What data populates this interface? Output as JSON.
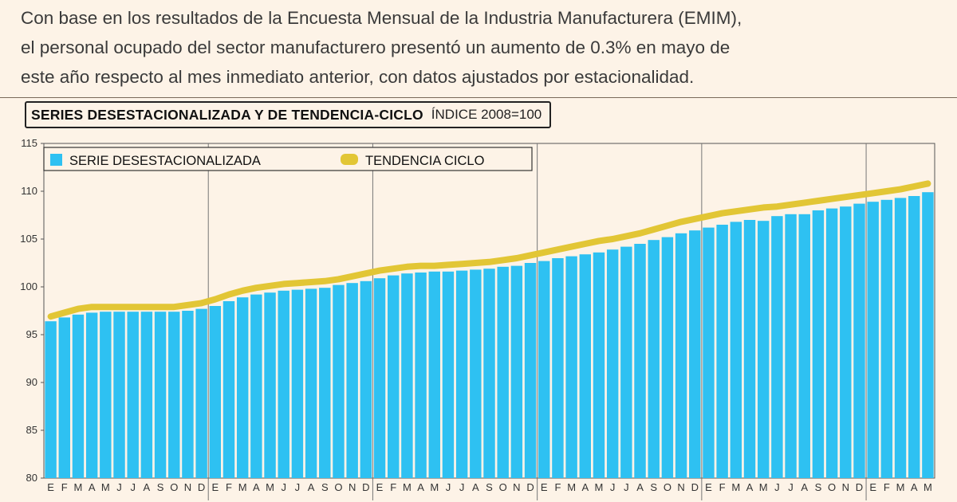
{
  "intro": {
    "line1": "Con base en los resultados de la Encuesta Mensual de la Industria Manufacturera (EMIM),",
    "line2": "el personal ocupado del sector manufacturero presentó un aumento de 0.3% en mayo de",
    "line3": "este año respecto al mes inmediato anterior, con datos ajustados por estacionalidad."
  },
  "colors": {
    "bar": "#2ec1f2",
    "trend": "#e2c635",
    "background": "#fdf3e7"
  },
  "chart_data": {
    "type": "bar",
    "title": "SERIES DESESTACIONALIZADA Y DE TENDENCIA-CICLO",
    "subtitle": "ÍNDICE 2008=100",
    "ylim": [
      80,
      115
    ],
    "yticks": [
      80,
      85,
      90,
      95,
      100,
      105,
      110,
      115
    ],
    "grid": false,
    "legend_position": "top-left",
    "categories": [
      "E",
      "F",
      "M",
      "A",
      "M",
      "J",
      "J",
      "A",
      "S",
      "O",
      "N",
      "D",
      "E",
      "F",
      "M",
      "A",
      "M",
      "J",
      "J",
      "A",
      "S",
      "O",
      "N",
      "D",
      "E",
      "F",
      "M",
      "A",
      "M",
      "J",
      "J",
      "A",
      "S",
      "O",
      "N",
      "D",
      "E",
      "F",
      "M",
      "A",
      "M",
      "J",
      "J",
      "A",
      "S",
      "O",
      "N",
      "D",
      "E",
      "F",
      "M",
      "A",
      "M",
      "J",
      "J",
      "A",
      "S",
      "O",
      "N",
      "D",
      "E",
      "F",
      "M",
      "A",
      "M"
    ],
    "series": [
      {
        "name": "SERIE DESESTACIONALIZADA",
        "type": "bar",
        "values": [
          96.4,
          96.8,
          97.1,
          97.3,
          97.4,
          97.4,
          97.4,
          97.4,
          97.4,
          97.4,
          97.5,
          97.7,
          98.0,
          98.5,
          98.9,
          99.2,
          99.4,
          99.6,
          99.7,
          99.8,
          99.9,
          100.2,
          100.4,
          100.6,
          100.9,
          101.2,
          101.4,
          101.5,
          101.6,
          101.6,
          101.7,
          101.8,
          101.9,
          102.1,
          102.2,
          102.5,
          102.7,
          103.0,
          103.2,
          103.4,
          103.6,
          103.9,
          104.2,
          104.5,
          104.9,
          105.2,
          105.6,
          105.9,
          106.2,
          106.5,
          106.8,
          107.0,
          106.9,
          107.4,
          107.6,
          107.6,
          108.0,
          108.2,
          108.4,
          108.7,
          108.9,
          109.1,
          109.3,
          109.5,
          109.9
        ]
      },
      {
        "name": "TENDENCIA CICLO",
        "type": "line",
        "values": [
          96.9,
          97.3,
          97.7,
          97.9,
          97.9,
          97.9,
          97.9,
          97.9,
          97.9,
          97.9,
          98.1,
          98.3,
          98.7,
          99.2,
          99.6,
          99.9,
          100.1,
          100.3,
          100.4,
          100.5,
          100.6,
          100.8,
          101.1,
          101.4,
          101.7,
          101.9,
          102.1,
          102.2,
          102.2,
          102.3,
          102.4,
          102.5,
          102.6,
          102.8,
          103.0,
          103.3,
          103.6,
          103.9,
          104.2,
          104.5,
          104.8,
          105.0,
          105.3,
          105.6,
          106.0,
          106.4,
          106.8,
          107.1,
          107.4,
          107.7,
          107.9,
          108.1,
          108.3,
          108.4,
          108.6,
          108.8,
          109.0,
          109.2,
          109.4,
          109.6,
          109.8,
          110.0,
          110.2,
          110.5,
          110.8
        ]
      }
    ]
  }
}
